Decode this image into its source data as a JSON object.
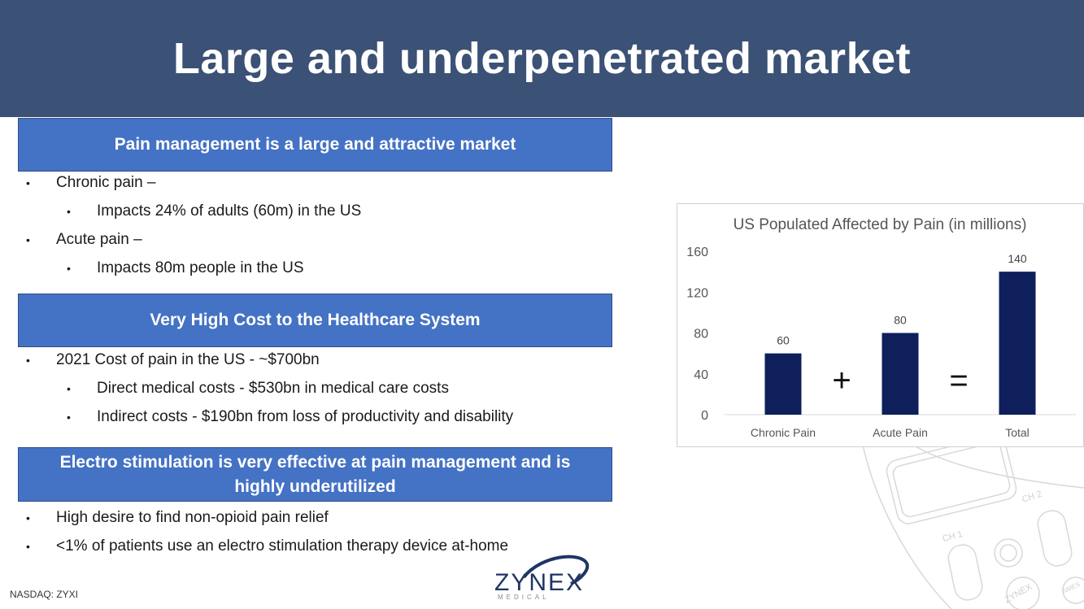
{
  "title": "Large and underpenetrated market",
  "sections": [
    {
      "heading": "Pain management  is a large and attractive market",
      "bullets": [
        {
          "level": 1,
          "text": "Chronic pain –"
        },
        {
          "level": 2,
          "text": "Impacts 24% of adults (60m) in the US"
        },
        {
          "level": 1,
          "text": "Acute pain –"
        },
        {
          "level": 2,
          "text": "Impacts 80m people in the US"
        }
      ]
    },
    {
      "heading": "Very High Cost to the Healthcare System",
      "bullets": [
        {
          "level": 1,
          "text": "2021 Cost of pain in the US - ~$700bn"
        },
        {
          "level": 2,
          "text": "Direct medical costs - $530bn in medical care costs"
        },
        {
          "level": 2,
          "text": "Indirect costs - $190bn from loss of productivity and disability"
        }
      ]
    },
    {
      "heading_line1": "Electro stimulation is very effective at pain management and is",
      "heading_line2": "highly underutilized",
      "bullets": [
        {
          "level": 1,
          "text": "High desire to find non-opioid pain relief"
        },
        {
          "level": 1,
          "text": "<1% of patients use an electro stimulation therapy device at-home"
        }
      ]
    }
  ],
  "bullet_glyph": "•",
  "chart_data": {
    "type": "bar",
    "title": "US Populated Affected by Pain (in millions)",
    "categories": [
      "Chronic Pain",
      "Acute Pain",
      "Total"
    ],
    "values": [
      60,
      80,
      140
    ],
    "ylim": [
      0,
      160
    ],
    "yticks": [
      0,
      40,
      80,
      120,
      160
    ],
    "xlabel": "",
    "ylabel": "",
    "operators": [
      "+",
      "="
    ],
    "bar_color": "#0e1f5b",
    "grid": false
  },
  "footer": {
    "ticker": "NASDAQ: ZYXI",
    "logo_name": "ZYNEX",
    "logo_sub": "MEDICAL"
  },
  "device_labels": {
    "ch1": "CH 1",
    "ch2": "CH 2",
    "brand": "ZYNEX",
    "mode": "NMES"
  },
  "colors": {
    "header_bg": "#3b5175",
    "section_bg": "#4472c4",
    "bar": "#0e1f5b",
    "logo_navy": "#1f3564"
  }
}
